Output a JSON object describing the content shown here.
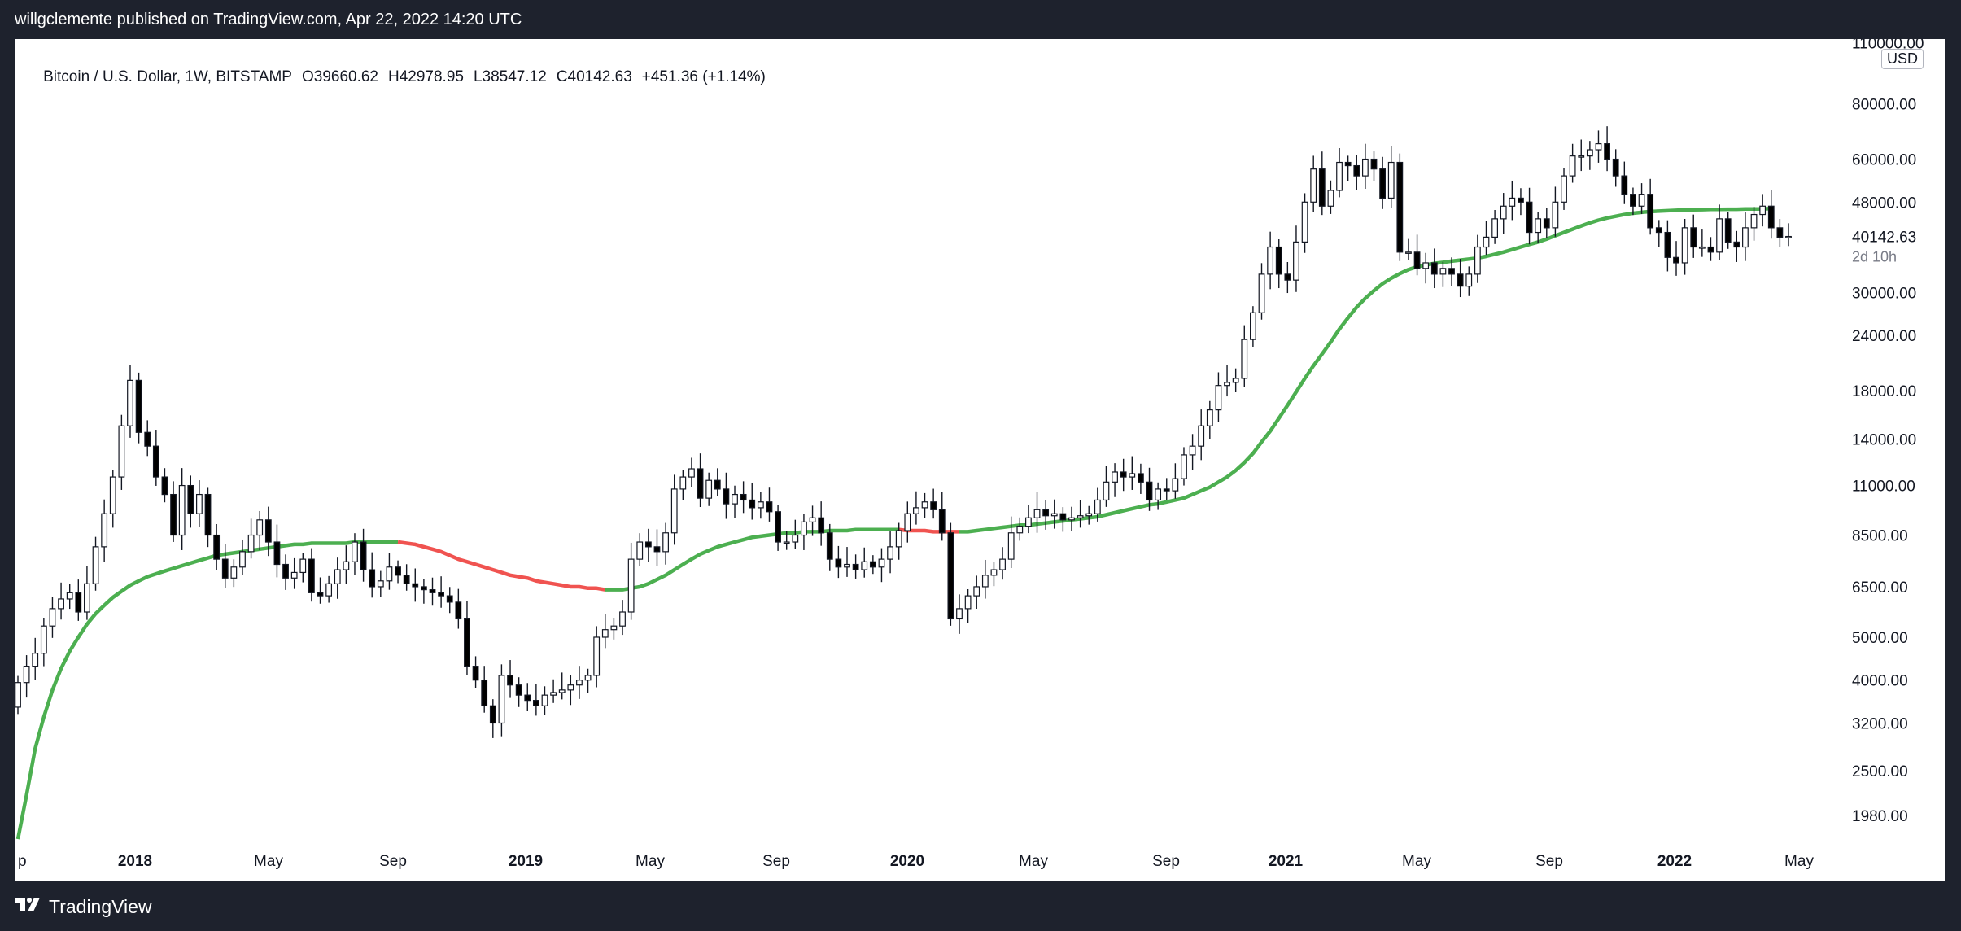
{
  "header": {
    "publisher_line": "willgclemente published on TradingView.com, Apr 22, 2022 14:20 UTC"
  },
  "symbol_info": {
    "name": "Bitcoin / U.S. Dollar, 1W, BITSTAMP",
    "open": "O39660.62",
    "high": "H42978.95",
    "low": "L38547.12",
    "close": "C40142.63",
    "change": "+451.36 (+1.14%)"
  },
  "currency_badge": "USD",
  "footer": {
    "brand": "TradingView",
    "logo_icon": "tradingview-logo-icon"
  },
  "colors": {
    "up_candle": "#ffffff",
    "down_candle": "#000000",
    "ma_bull": "#4caf50",
    "ma_bear": "#f05350",
    "frame": "#1e222d"
  },
  "chart_data": {
    "type": "candlestick",
    "timeframe": "1W",
    "scale": "log",
    "ylim": [
      1700,
      112000
    ],
    "y_ticks": [
      "110000.00",
      "80000.00",
      "60000.00",
      "48000.00",
      "30000.00",
      "24000.00",
      "18000.00",
      "14000.00",
      "11000.00",
      "8500.00",
      "6500.00",
      "5000.00",
      "4000.00",
      "3200.00",
      "2500.00",
      "1980.00"
    ],
    "x_ticks": [
      {
        "label": "p",
        "year": false
      },
      {
        "label": "2018",
        "year": true
      },
      {
        "label": "May",
        "year": false
      },
      {
        "label": "Sep",
        "year": false
      },
      {
        "label": "2019",
        "year": true
      },
      {
        "label": "May",
        "year": false
      },
      {
        "label": "Sep",
        "year": false
      },
      {
        "label": "2020",
        "year": true
      },
      {
        "label": "May",
        "year": false
      },
      {
        "label": "Sep",
        "year": false
      },
      {
        "label": "2021",
        "year": true
      },
      {
        "label": "May",
        "year": false
      },
      {
        "label": "Sep",
        "year": false
      },
      {
        "label": "2022",
        "year": true
      },
      {
        "label": "May",
        "year": false
      }
    ],
    "current_price": {
      "label": "40142.63",
      "countdown": "2d 10h",
      "value": 40142.63
    },
    "closes": [
      3950,
      4300,
      4600,
      5300,
      5800,
      6100,
      6300,
      5700,
      6600,
      8000,
      9500,
      11500,
      15000,
      19000,
      14500,
      13500,
      11500,
      10500,
      8500,
      11000,
      9500,
      10500,
      8500,
      7500,
      6800,
      7200,
      7800,
      8500,
      9200,
      8200,
      7300,
      6800,
      7000,
      7500,
      6300,
      6200,
      6600,
      7100,
      7400,
      8200,
      7100,
      6500,
      6700,
      7200,
      6900,
      6600,
      6500,
      6400,
      6300,
      6200,
      6000,
      5500,
      4300,
      4000,
      3500,
      3200,
      4100,
      3900,
      3700,
      3600,
      3500,
      3700,
      3750,
      3800,
      3900,
      4000,
      4100,
      5000,
      5200,
      5300,
      5700,
      7500,
      8200,
      8000,
      7800,
      8600,
      10800,
      11500,
      12000,
      10300,
      11300,
      10800,
      10000,
      10500,
      10200,
      9800,
      10100,
      9600,
      8200,
      8200,
      8500,
      9100,
      9300,
      8600,
      7500,
      7200,
      7300,
      7100,
      7400,
      7200,
      7500,
      8000,
      8700,
      9500,
      9800,
      10100,
      9700,
      8600,
      5500,
      5800,
      6200,
      6500,
      6900,
      7100,
      7500,
      8600,
      8900,
      9300,
      9700,
      9400,
      9500,
      9200,
      9300,
      9400,
      9500,
      10200,
      11200,
      11800,
      11500,
      11700,
      11200,
      10200,
      10800,
      10700,
      11400,
      12900,
      13500,
      15000,
      16300,
      18500,
      18800,
      19200,
      23500,
      27000,
      33000,
      38000,
      33000,
      32000,
      39000,
      48000,
      57000,
      47000,
      51000,
      59000,
      58000,
      55000,
      60000,
      57000,
      49000,
      59000,
      37000,
      37000,
      34000,
      35000,
      33000,
      34000,
      33000,
      31000,
      33000,
      38000,
      40000,
      44000,
      47000,
      49000,
      48000,
      41000,
      44000,
      42000,
      48000,
      55000,
      61000,
      61000,
      63000,
      65000,
      60000,
      55000,
      50000,
      47000,
      50000,
      42000,
      41000,
      36000,
      35000,
      42000,
      38000,
      38000,
      37000,
      44000,
      39000,
      38000,
      42000,
      45000,
      47000,
      42000,
      40000,
      40142
    ],
    "ma": {
      "bull_segments": [
        [
          0,
          44
        ],
        [
          68,
          102
        ],
        [
          109,
          204
        ]
      ],
      "bear_segments": [
        [
          44,
          68
        ],
        [
          102,
          109
        ]
      ],
      "values": [
        1750,
        2200,
        2800,
        3300,
        3800,
        4250,
        4650,
        5000,
        5350,
        5650,
        5900,
        6150,
        6350,
        6550,
        6700,
        6850,
        6950,
        7050,
        7150,
        7250,
        7350,
        7450,
        7550,
        7650,
        7700,
        7750,
        7800,
        7850,
        7900,
        7950,
        8000,
        8050,
        8100,
        8100,
        8150,
        8150,
        8150,
        8150,
        8150,
        8200,
        8200,
        8200,
        8200,
        8200,
        8200,
        8150,
        8100,
        8000,
        7900,
        7800,
        7650,
        7500,
        7400,
        7300,
        7200,
        7100,
        7000,
        6900,
        6850,
        6800,
        6700,
        6650,
        6600,
        6550,
        6500,
        6500,
        6450,
        6450,
        6400,
        6400,
        6400,
        6450,
        6500,
        6600,
        6750,
        6900,
        7100,
        7300,
        7500,
        7700,
        7850,
        8000,
        8100,
        8200,
        8300,
        8400,
        8450,
        8500,
        8550,
        8600,
        8600,
        8650,
        8650,
        8650,
        8700,
        8700,
        8700,
        8750,
        8750,
        8750,
        8750,
        8750,
        8750,
        8700,
        8700,
        8700,
        8650,
        8650,
        8650,
        8650,
        8650,
        8700,
        8750,
        8800,
        8850,
        8900,
        8950,
        8950,
        9000,
        9050,
        9100,
        9150,
        9200,
        9250,
        9300,
        9350,
        9450,
        9550,
        9650,
        9750,
        9850,
        9950,
        10000,
        10100,
        10200,
        10300,
        10500,
        10700,
        10900,
        11200,
        11500,
        11900,
        12400,
        13000,
        13800,
        14600,
        15600,
        16700,
        17900,
        19200,
        20500,
        21800,
        23200,
        24800,
        26300,
        27800,
        29100,
        30300,
        31400,
        32300,
        33100,
        33800,
        34300,
        34600,
        34900,
        35100,
        35300,
        35500,
        35700,
        35900,
        36200,
        36600,
        37000,
        37500,
        38000,
        38500,
        39000,
        39600,
        40300,
        41000,
        41700,
        42400,
        43100,
        43700,
        44200,
        44600,
        45000,
        45300,
        45500,
        45700,
        45800,
        45900,
        46000,
        46100,
        46100,
        46150,
        46200,
        46200,
        46250,
        46250,
        46300,
        46300,
        46350,
        46400
      ]
    }
  }
}
